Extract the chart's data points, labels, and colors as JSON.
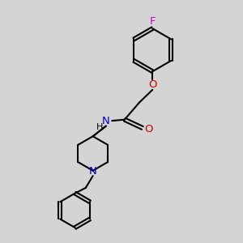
{
  "bg_color": "#d4d4d4",
  "bond_color": "#000000",
  "bond_width": 1.5,
  "o_color": "#cc0000",
  "n_color": "#0000cc",
  "f_color": "#cc00cc",
  "figsize": [
    3.0,
    3.0
  ],
  "dpi": 100,
  "xlim": [
    0,
    10
  ],
  "ylim": [
    0,
    10
  ]
}
